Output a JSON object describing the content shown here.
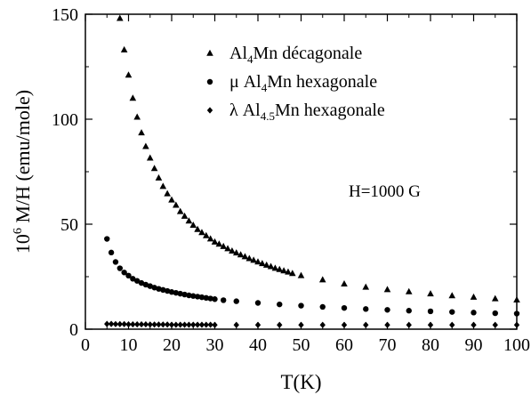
{
  "chart_data": {
    "type": "scatter",
    "xlabel": "T(K)",
    "ylabel": {
      "prefix": "10",
      "exp": "6",
      "rest": " M/H (emu/mole)"
    },
    "xlim": [
      0,
      100
    ],
    "ylim": [
      0,
      150
    ],
    "xticks": [
      0,
      10,
      20,
      30,
      40,
      50,
      60,
      70,
      80,
      90,
      100
    ],
    "yticks": [
      0,
      50,
      100,
      150
    ],
    "grid": false,
    "legend_position": "top-center",
    "annotation": "H=1000 G",
    "series": [
      {
        "name": "Al4Mn décagonale",
        "legend_parts": [
          [
            "",
            "Al"
          ],
          [
            "sub",
            "4"
          ],
          [
            "",
            "Mn décagonale"
          ]
        ],
        "marker": "triangle",
        "x": [
          8,
          9,
          10,
          11,
          12,
          13,
          14,
          15,
          16,
          17,
          18,
          19,
          20,
          21,
          22,
          23,
          24,
          25,
          26,
          27,
          28,
          29,
          30,
          31,
          32,
          33,
          34,
          35,
          36,
          37,
          38,
          39,
          40,
          41,
          42,
          43,
          44,
          45,
          46,
          47,
          48,
          50,
          55,
          60,
          65,
          70,
          75,
          80,
          85,
          90,
          95,
          100
        ],
        "y": [
          148,
          133,
          121,
          110,
          101,
          93.5,
          87,
          81.5,
          76.5,
          72,
          68,
          64.5,
          61.5,
          59,
          56,
          53.8,
          51.5,
          49.5,
          47.5,
          46,
          44.5,
          43,
          41.5,
          40.5,
          39.4,
          38.3,
          37.2,
          36.3,
          35.4,
          34.5,
          33.6,
          32.8,
          32,
          31.2,
          30.5,
          29.8,
          29,
          28.4,
          27.8,
          27.2,
          26.5,
          25.5,
          23.5,
          21.5,
          20,
          18.8,
          17.8,
          16.8,
          15.9,
          15.2,
          14.5,
          13.9
        ]
      },
      {
        "name": "μ Al4Mn hexagonale",
        "legend_parts": [
          [
            "",
            "μ Al"
          ],
          [
            "sub",
            "4"
          ],
          [
            "",
            "Mn hexagonale"
          ]
        ],
        "marker": "circle",
        "x": [
          5,
          6,
          7,
          8,
          9,
          10,
          11,
          12,
          13,
          14,
          15,
          16,
          17,
          18,
          19,
          20,
          21,
          22,
          23,
          24,
          25,
          26,
          27,
          28,
          29,
          30,
          32,
          35,
          40,
          45,
          50,
          55,
          60,
          65,
          70,
          75,
          80,
          85,
          90,
          95,
          100
        ],
        "y": [
          43,
          36.5,
          32,
          29,
          27,
          25.5,
          24,
          23,
          22,
          21.2,
          20.5,
          19.8,
          19.2,
          18.7,
          18.2,
          17.7,
          17.3,
          16.9,
          16.5,
          16.1,
          15.8,
          15.5,
          15.2,
          14.9,
          14.6,
          14.3,
          13.8,
          13.3,
          12.5,
          11.8,
          11.2,
          10.6,
          10.1,
          9.6,
          9.2,
          8.8,
          8.5,
          8.2,
          7.9,
          7.6,
          7.4
        ]
      },
      {
        "name": "λ Al4.5Mn hexagonale",
        "legend_parts": [
          [
            "",
            "λ Al"
          ],
          [
            "sub",
            "4.5"
          ],
          [
            "",
            "Mn hexagonale"
          ]
        ],
        "marker": "diamond",
        "x": [
          5,
          6,
          7,
          8,
          9,
          10,
          11,
          12,
          13,
          14,
          15,
          16,
          17,
          18,
          19,
          20,
          21,
          22,
          23,
          24,
          25,
          26,
          27,
          28,
          29,
          30,
          35,
          40,
          45,
          50,
          55,
          60,
          65,
          70,
          75,
          80,
          85,
          90,
          95,
          100
        ],
        "y": [
          2.5,
          2.5,
          2.4,
          2.4,
          2.4,
          2.3,
          2.3,
          2.3,
          2.3,
          2.3,
          2.2,
          2.2,
          2.2,
          2.2,
          2.2,
          2.1,
          2.1,
          2.1,
          2.1,
          2.1,
          2.1,
          2.1,
          2.1,
          2.1,
          2.1,
          2.0,
          2.0,
          2.0,
          2.0,
          2.0,
          2.0,
          2.0,
          2.0,
          2.0,
          2.0,
          2.0,
          2.0,
          2.0,
          2.0,
          2.0
        ]
      }
    ]
  }
}
